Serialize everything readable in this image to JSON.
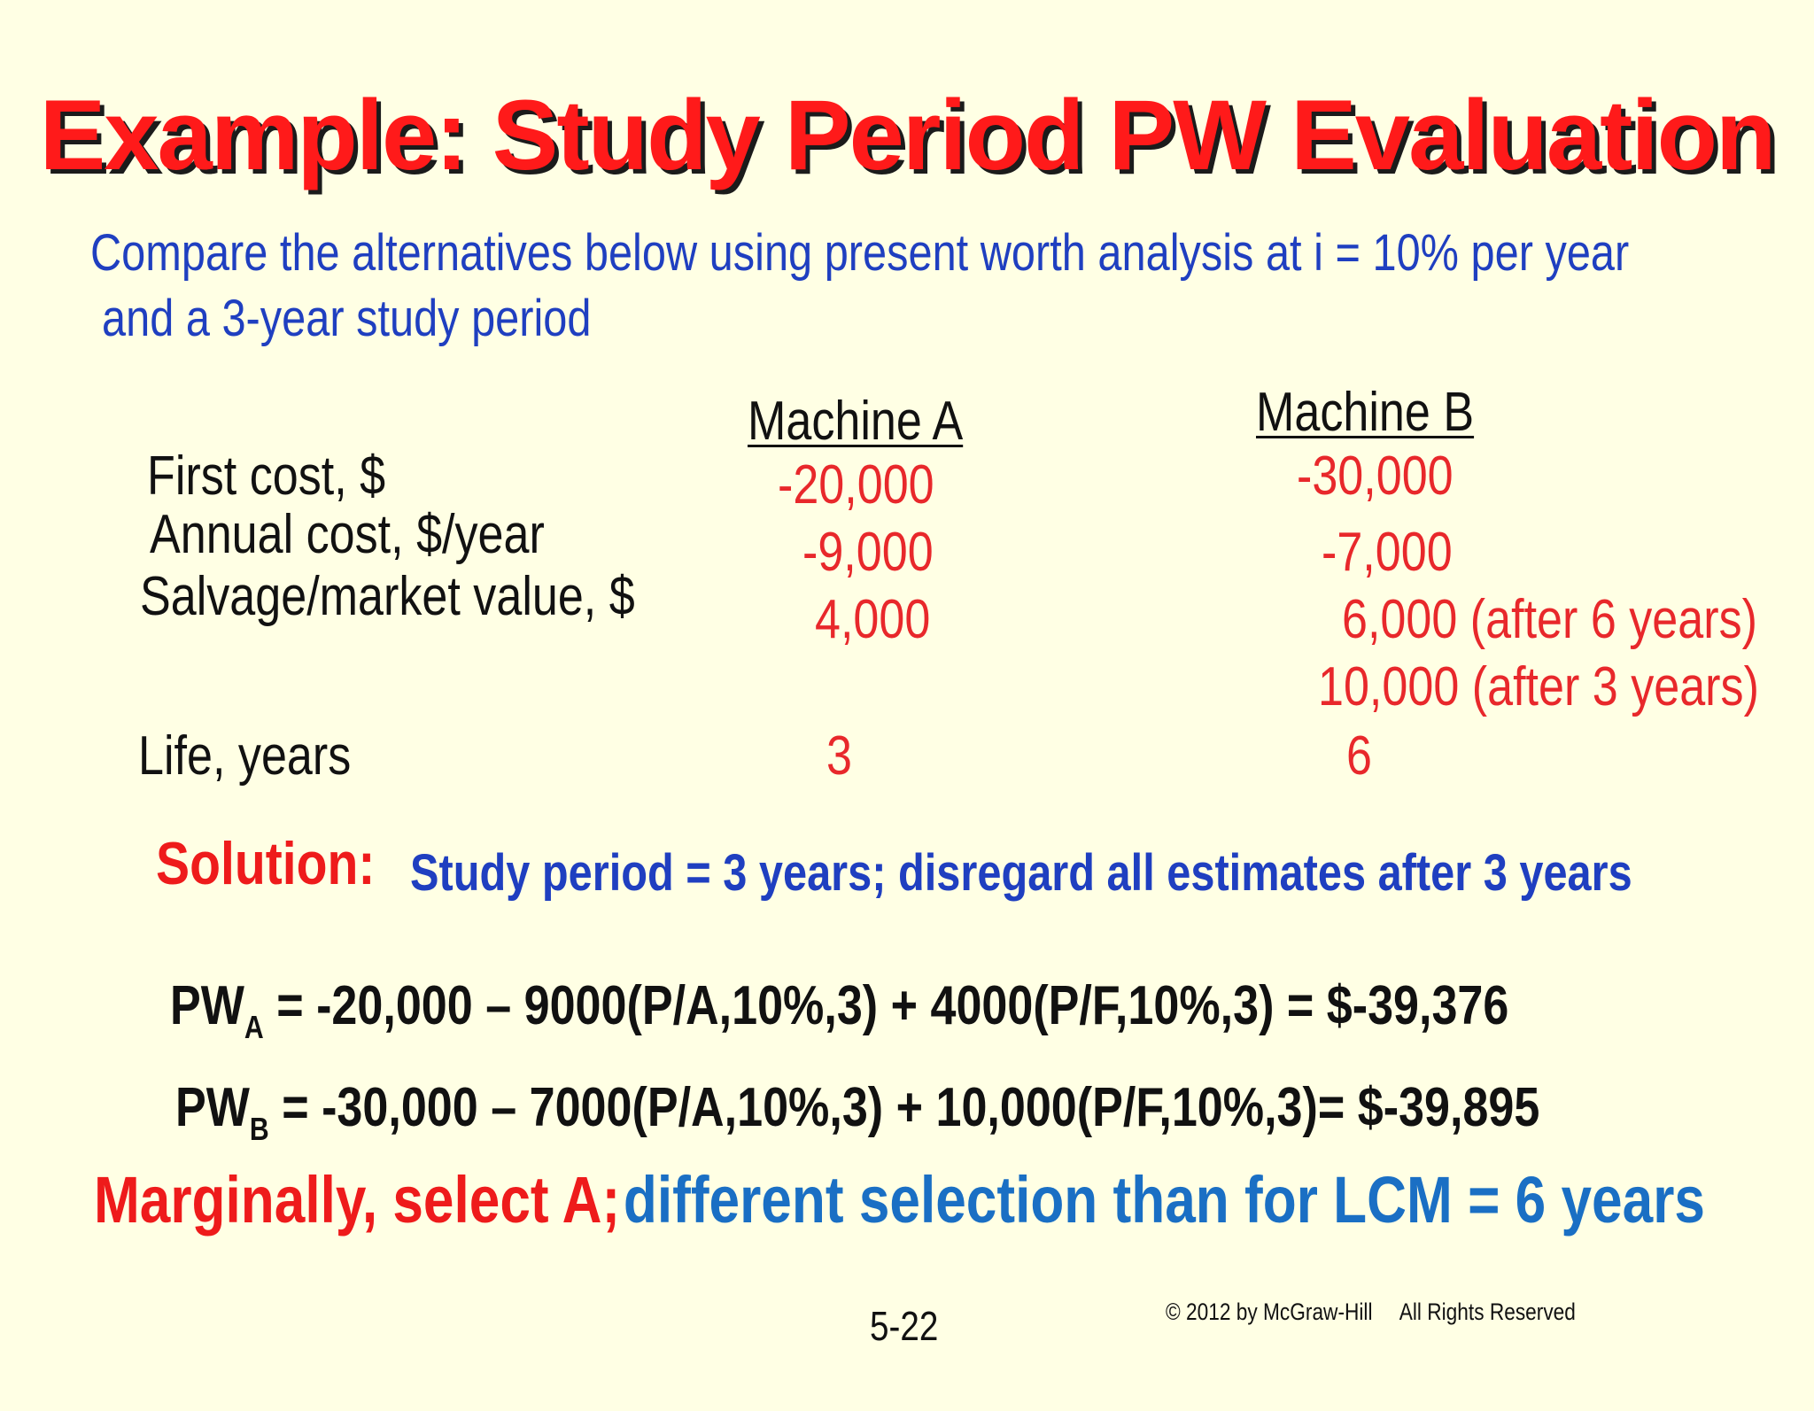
{
  "title": "Example: Study Period PW Evaluation",
  "intro": {
    "line1": "Compare the alternatives below using present worth analysis at i = 10% per year",
    "line2": "and a 3-year study period"
  },
  "table": {
    "headers": {
      "a": "Machine A",
      "b": "Machine B"
    },
    "labels": {
      "first_cost": "First cost, $",
      "annual_cost": "Annual cost, $/year",
      "salvage": "Salvage/market value, $",
      "life": "Life, years"
    },
    "machine_a": {
      "first_cost": "-20,000",
      "annual_cost": "-9,000",
      "salvage": "4,000",
      "life": "3"
    },
    "machine_b": {
      "first_cost": "-30,000",
      "annual_cost": "-7,000",
      "salvage_6": "6,000 (after 6 years)",
      "salvage_3": "10,000 (after 3 years)",
      "life": "6"
    }
  },
  "solution": {
    "label": "Solution:",
    "text": "Study period = 3 years; disregard all estimates after 3 years"
  },
  "equations": {
    "a": {
      "pw": "PW",
      "sub": "A",
      "rest": " = -20,000 – 9000(P/A,10%,3) + 4000(P/F,10%,3)  = $-39,376"
    },
    "b": {
      "pw": "PW",
      "sub": "B",
      "rest": " = -30,000 – 7000(P/A,10%,3) + 10,000(P/F,10%,3)= $-39,895"
    }
  },
  "conclusion": {
    "red": "Marginally, select A;",
    "blue": "different selection than for LCM = 6 years"
  },
  "footer": {
    "page": "5-22",
    "copyright": "© 2012 by McGraw-Hill     All Rights Reserved"
  }
}
